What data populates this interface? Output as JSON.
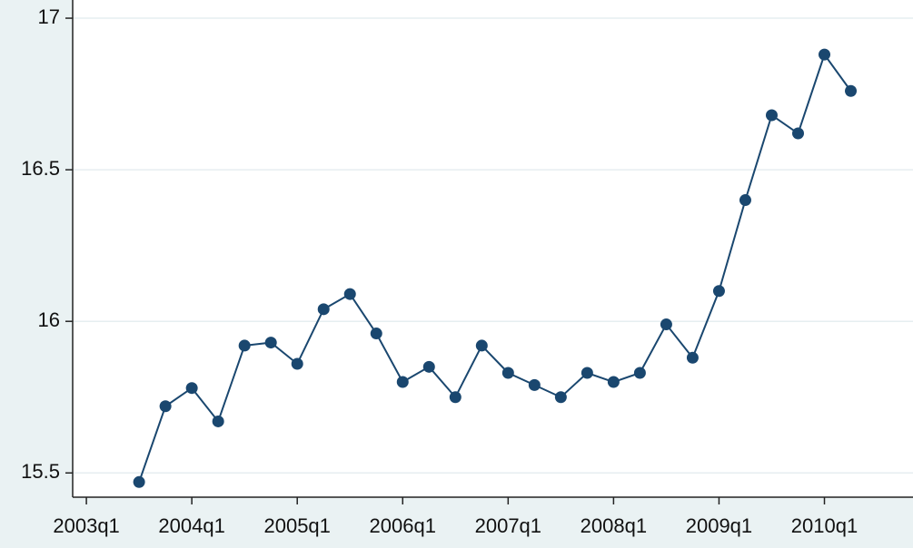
{
  "chart_data": {
    "type": "line",
    "x": [
      2003.5,
      2003.75,
      2004,
      2004.25,
      2004.5,
      2004.75,
      2005,
      2005.25,
      2005.5,
      2005.75,
      2006,
      2006.25,
      2006.5,
      2006.75,
      2007,
      2007.25,
      2007.5,
      2007.75,
      2008,
      2008.25,
      2008.5,
      2008.75,
      2009,
      2009.25,
      2009.5,
      2009.75,
      2010,
      2010.25
    ],
    "series": [
      {
        "color": "#1a476f",
        "values": [
          15.47,
          15.72,
          15.78,
          15.67,
          15.92,
          15.93,
          15.86,
          16.04,
          16.09,
          15.96,
          15.8,
          15.85,
          15.75,
          15.92,
          15.83,
          15.79,
          15.75,
          15.83,
          15.8,
          15.83,
          15.99,
          15.88,
          16.1,
          16.4,
          16.68,
          16.62,
          16.88,
          16.76
        ]
      }
    ],
    "xlim": [
      2002.87,
      2010.84
    ],
    "xticks": [
      {
        "value": 2003,
        "label": "2003q1"
      },
      {
        "value": 2004,
        "label": "2004q1"
      },
      {
        "value": 2005,
        "label": "2005q1"
      },
      {
        "value": 2006,
        "label": "2006q1"
      },
      {
        "value": 2007,
        "label": "2007q1"
      },
      {
        "value": 2008,
        "label": "2008q1"
      },
      {
        "value": 2009,
        "label": "2009q1"
      },
      {
        "value": 2010,
        "label": "2010q1"
      }
    ],
    "ylim": [
      15.42,
      17.06
    ],
    "yticks": [
      15.5,
      16,
      16.5,
      {
        "value": 17,
        "label": "17"
      }
    ],
    "grid": true
  }
}
